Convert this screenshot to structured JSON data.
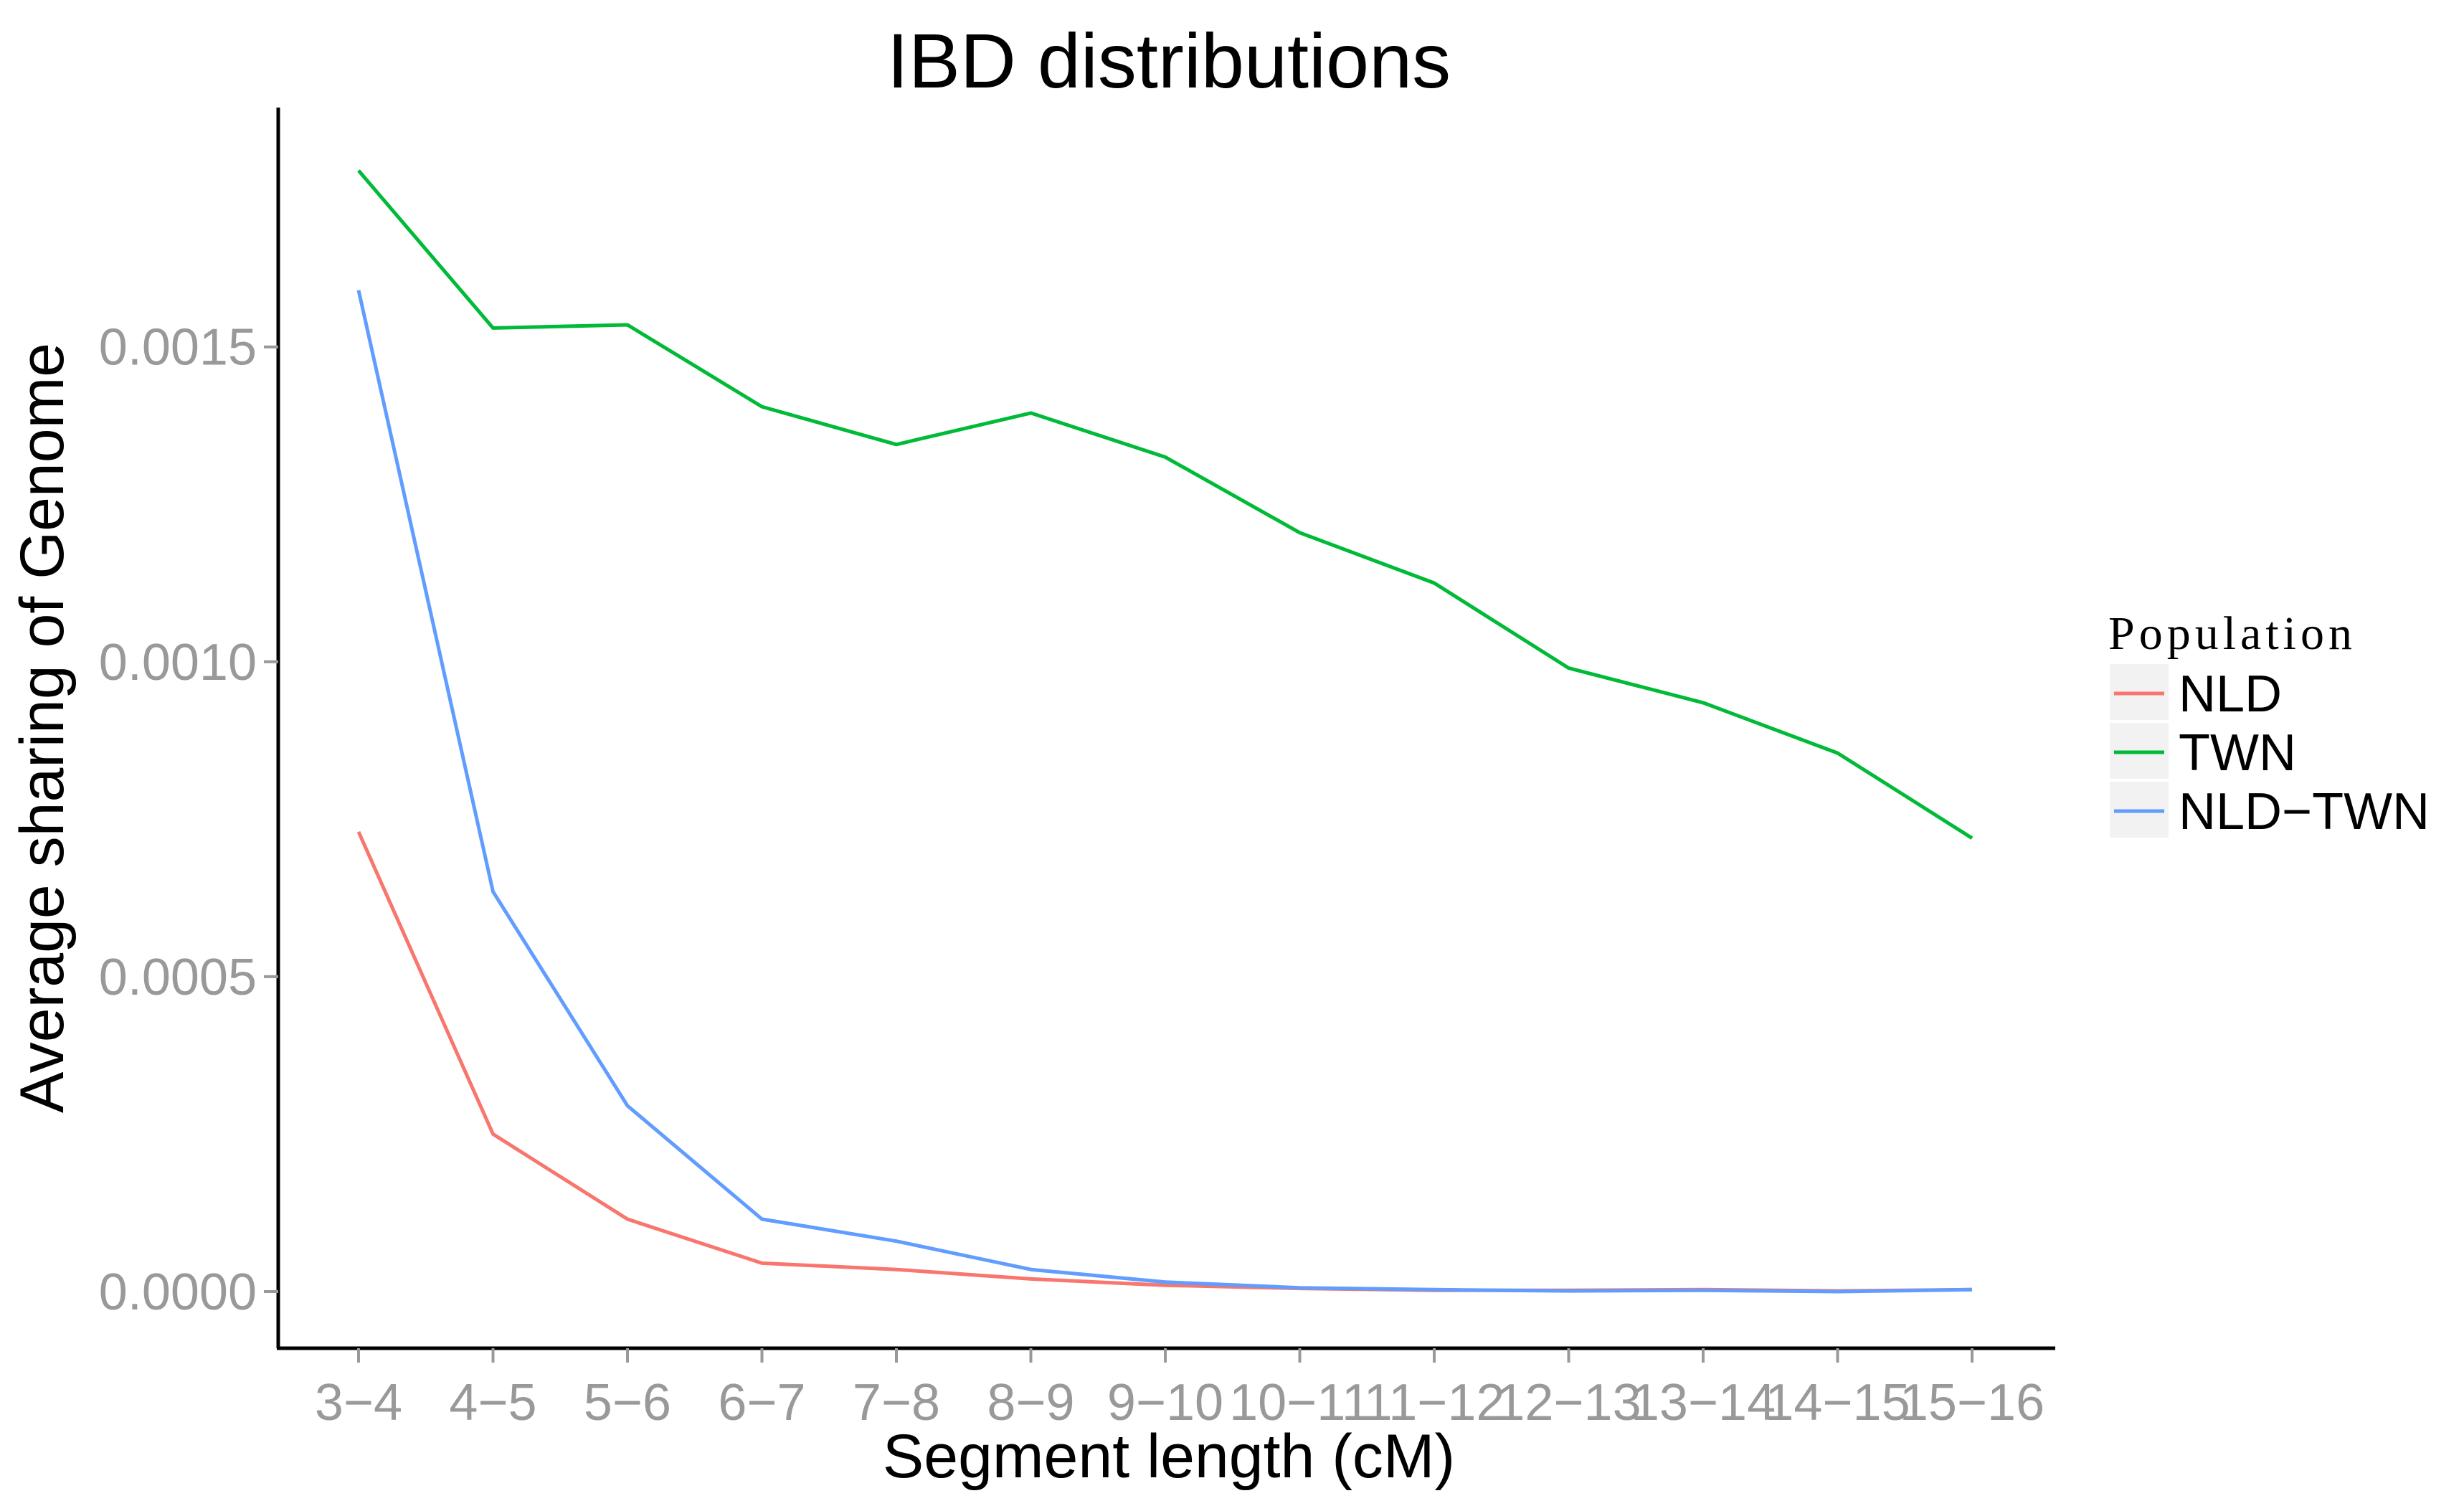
{
  "chart_data": {
    "type": "line",
    "title": "IBD distributions",
    "xlabel": "Segment length (cM)",
    "ylabel": "Average sharing of Genome",
    "categories": [
      "3−4",
      "4−5",
      "5−6",
      "6−7",
      "7−8",
      "8−9",
      "9−10",
      "10−11",
      "11−12",
      "12−13",
      "13−14",
      "14−15",
      "15−16"
    ],
    "yticks": [
      0.0,
      0.0005,
      0.001,
      0.0015
    ],
    "ytick_labels": [
      "0.0000",
      "0.0005",
      "0.0010",
      "0.0015"
    ],
    "ylim": [
      -9e-05,
      0.00188
    ],
    "grid": false,
    "legend": {
      "title": "Population",
      "position": "right"
    },
    "series": [
      {
        "name": "NLD",
        "color": "#F8766D",
        "values": [
          0.00073,
          0.00025,
          0.000115,
          4.5e-05,
          3.5e-05,
          2e-05,
          1e-05,
          5e-06,
          2e-06,
          2e-06,
          3e-06,
          1e-06,
          3e-06
        ]
      },
      {
        "name": "TWN",
        "color": "#00BA38",
        "values": [
          0.00178,
          0.00153,
          0.001535,
          0.001405,
          0.001345,
          0.001395,
          0.001325,
          0.001205,
          0.001125,
          0.00099,
          0.000935,
          0.000855,
          0.00072
        ]
      },
      {
        "name": "NLD−TWN",
        "color": "#619CFF",
        "values": [
          0.00159,
          0.000635,
          0.000295,
          0.000115,
          8e-05,
          3.5e-05,
          1.5e-05,
          6e-06,
          3e-06,
          1e-06,
          2e-06,
          0.0,
          3e-06
        ]
      }
    ]
  }
}
